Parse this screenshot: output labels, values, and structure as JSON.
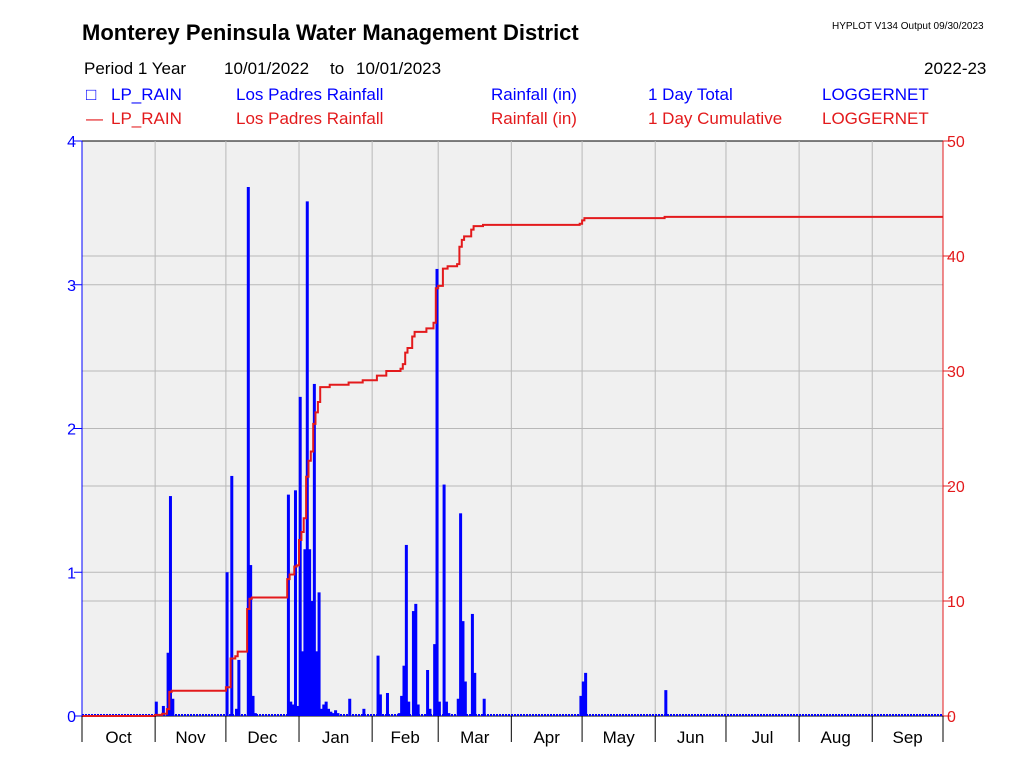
{
  "header": {
    "title": "Monterey Peninsula Water Management District",
    "version": "HYPLOT V134  Output 09/30/2023",
    "period": "Period 1 Year",
    "start_date": "10/01/2022",
    "to": "to",
    "end_date": "10/01/2023",
    "water_year": "2022-23"
  },
  "legend": [
    {
      "marker": "□",
      "site": "LP_RAIN",
      "site_name": "Los Padres Rainfall",
      "variable": "Rainfall (in)",
      "stat": "1 Day Total",
      "source": "LOGGERNET",
      "color": "#0000ff"
    },
    {
      "marker": "—",
      "site": "LP_RAIN",
      "site_name": "Los Padres Rainfall",
      "variable": "Rainfall (in)",
      "stat": "1 Day Cumulative",
      "source": "LOGGERNET",
      "color": "#e31a1c"
    }
  ],
  "chart_data": {
    "type": "bar",
    "x_tick_labels": [
      "Oct",
      "Nov",
      "Dec",
      "Jan",
      "Feb",
      "Mar",
      "Apr",
      "May",
      "Jun",
      "Jul",
      "Aug",
      "Sep"
    ],
    "y_left": {
      "ticks": [
        "0",
        "1",
        "2",
        "3",
        "4"
      ],
      "range": [
        0,
        4
      ],
      "color": "#0000ff"
    },
    "y_right": {
      "ticks": [
        "0",
        "10",
        "20",
        "30",
        "40",
        "50"
      ],
      "range": [
        0,
        50
      ],
      "color": "#e31a1c"
    },
    "grid": true,
    "series": [
      {
        "name": "LP_RAIN Los Padres Rainfall 1 Day Total",
        "type": "bar",
        "axis": "left",
        "color": "#0000ff",
        "x": [
          "2022-11-01",
          "2022-11-04",
          "2022-11-06",
          "2022-11-07",
          "2022-11-08",
          "2022-12-01",
          "2022-12-03",
          "2022-12-05",
          "2022-12-06",
          "2022-12-10",
          "2022-12-11",
          "2022-12-12",
          "2022-12-13",
          "2022-12-27",
          "2022-12-28",
          "2022-12-29",
          "2022-12-30",
          "2022-12-31",
          "2023-01-01",
          "2023-01-02",
          "2023-01-03",
          "2023-01-04",
          "2023-01-05",
          "2023-01-06",
          "2023-01-07",
          "2023-01-08",
          "2023-01-09",
          "2023-01-10",
          "2023-01-11",
          "2023-01-12",
          "2023-01-13",
          "2023-01-14",
          "2023-01-15",
          "2023-01-16",
          "2023-01-17",
          "2023-01-22",
          "2023-01-28",
          "2023-02-03",
          "2023-02-04",
          "2023-02-07",
          "2023-02-12",
          "2023-02-13",
          "2023-02-14",
          "2023-02-15",
          "2023-02-16",
          "2023-02-18",
          "2023-02-19",
          "2023-02-20",
          "2023-02-24",
          "2023-02-25",
          "2023-02-27",
          "2023-02-28",
          "2023-03-01",
          "2023-03-03",
          "2023-03-04",
          "2023-03-05",
          "2023-03-09",
          "2023-03-10",
          "2023-03-11",
          "2023-03-12",
          "2023-03-15",
          "2023-03-16",
          "2023-03-20",
          "2023-04-30",
          "2023-05-01",
          "2023-05-02",
          "2023-06-05"
        ],
        "values": [
          0.1,
          0.07,
          0.44,
          1.53,
          0.12,
          1.0,
          1.67,
          0.05,
          0.39,
          3.68,
          1.05,
          0.14,
          0.02,
          1.54,
          0.1,
          0.08,
          1.57,
          0.07,
          2.22,
          0.45,
          1.16,
          3.58,
          1.16,
          0.8,
          2.31,
          0.45,
          0.86,
          0.05,
          0.08,
          0.1,
          0.05,
          0.03,
          0.02,
          0.04,
          0.02,
          0.12,
          0.05,
          0.42,
          0.15,
          0.16,
          0.02,
          0.14,
          0.35,
          1.19,
          0.1,
          0.73,
          0.78,
          0.08,
          0.32,
          0.05,
          0.5,
          3.11,
          0.1,
          1.61,
          0.1,
          0.02,
          0.12,
          1.41,
          0.66,
          0.24,
          0.71,
          0.3,
          0.12,
          0.14,
          0.24,
          0.3,
          0.18
        ]
      },
      {
        "name": "LP_RAIN Los Padres Rainfall 1 Day Cumulative",
        "type": "line",
        "axis": "right",
        "color": "#e31a1c",
        "x": [
          "2022-10-01",
          "2022-11-01",
          "2022-11-04",
          "2022-11-06",
          "2022-11-07",
          "2022-11-08",
          "2022-12-01",
          "2022-12-03",
          "2022-12-05",
          "2022-12-06",
          "2022-12-10",
          "2022-12-11",
          "2022-12-12",
          "2022-12-27",
          "2022-12-28",
          "2022-12-30",
          "2022-12-31",
          "2023-01-01",
          "2023-01-02",
          "2023-01-03",
          "2023-01-04",
          "2023-01-05",
          "2023-01-06",
          "2023-01-07",
          "2023-01-08",
          "2023-01-09",
          "2023-01-10",
          "2023-01-14",
          "2023-01-22",
          "2023-01-28",
          "2023-02-03",
          "2023-02-07",
          "2023-02-13",
          "2023-02-14",
          "2023-02-15",
          "2023-02-16",
          "2023-02-18",
          "2023-02-19",
          "2023-02-24",
          "2023-02-27",
          "2023-02-28",
          "2023-03-01",
          "2023-03-03",
          "2023-03-05",
          "2023-03-09",
          "2023-03-10",
          "2023-03-11",
          "2023-03-12",
          "2023-03-15",
          "2023-03-16",
          "2023-03-20",
          "2023-04-30",
          "2023-05-01",
          "2023-05-02",
          "2023-06-05",
          "2023-09-30"
        ],
        "values": [
          0,
          0.1,
          0.2,
          0.6,
          2.1,
          2.2,
          2.5,
          5.0,
          5.2,
          5.6,
          9.3,
          10.2,
          10.3,
          11.9,
          12.3,
          13.0,
          13.1,
          15.3,
          16.0,
          17.2,
          20.8,
          22.2,
          23.0,
          25.4,
          26.4,
          27.3,
          28.6,
          28.8,
          29.0,
          29.2,
          29.6,
          30.0,
          30.2,
          30.6,
          31.6,
          32.0,
          33.0,
          33.4,
          33.7,
          34.2,
          37.2,
          37.4,
          38.9,
          39.1,
          39.3,
          40.8,
          41.4,
          41.7,
          42.3,
          42.6,
          42.7,
          42.8,
          43.1,
          43.3,
          43.4,
          43.4
        ]
      }
    ]
  }
}
